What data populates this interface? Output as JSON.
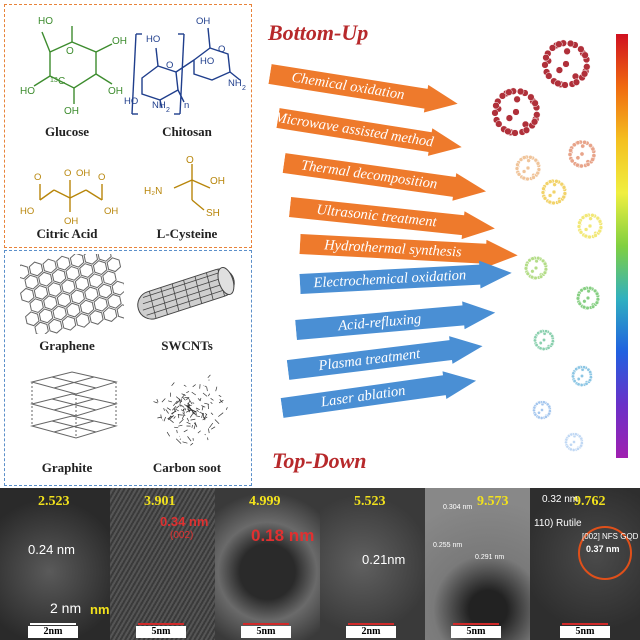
{
  "precursors": {
    "bottom_up": [
      {
        "label": "Glucose"
      },
      {
        "label": "Chitosan"
      },
      {
        "label": "Citric Acid"
      },
      {
        "label": "L-Cysteine"
      }
    ],
    "top_down": [
      {
        "label": "Graphene"
      },
      {
        "label": "SWCNTs"
      },
      {
        "label": "Graphite"
      },
      {
        "label": "Carbon soot"
      }
    ]
  },
  "headings": {
    "bottom_up": "Bottom-Up",
    "top_down": "Top-Down"
  },
  "methods": {
    "bottom_up": [
      "Chemical oxidation",
      "Microwave assisted method",
      "Thermal decomposition",
      "Ultrasonic treatment",
      "Hydrothermal synthesis"
    ],
    "top_down": [
      "Electrochemical oxidation",
      "Acid-refluxing",
      "Plasma treatment",
      "Laser ablation"
    ]
  },
  "colors": {
    "bottom_up_arrow": "#ee7a2c",
    "top_down_arrow": "#4a8fd4",
    "heading": "#b7292b",
    "size_value": "#f2e21c",
    "clusters": [
      "#b0303a",
      "#b0303a",
      "#e8a48a",
      "#f0c49a",
      "#f2d36a",
      "#f2e878",
      "#b4dd88",
      "#86cf82",
      "#8ad0ae",
      "#8cc6e4",
      "#a4c6ee",
      "#c0d8f4"
    ]
  },
  "tem": {
    "panels": [
      {
        "size": "2.523",
        "scale": "2nm",
        "annotations": [
          "0.24 nm",
          "2 nm",
          "nm"
        ]
      },
      {
        "size": "3.901",
        "scale": "5nm",
        "annotations": [
          "0.34 nm",
          "(002)"
        ]
      },
      {
        "size": "4.999",
        "scale": "5nm",
        "annotations": [
          "0.18 nm"
        ]
      },
      {
        "size": "5.523",
        "scale": "2nm",
        "annotations": [
          "0.21nm"
        ]
      },
      {
        "size": "9.573",
        "scale": "5nm",
        "annotations": [
          "0.304 nm",
          "0.255 nm",
          "0.291 nm"
        ]
      },
      {
        "size": "9.762",
        "scale": "5nm",
        "annotations": [
          "0.32 nm",
          "110) Rutile",
          "[002] NFS GQD",
          "0.37 nm"
        ]
      }
    ]
  }
}
